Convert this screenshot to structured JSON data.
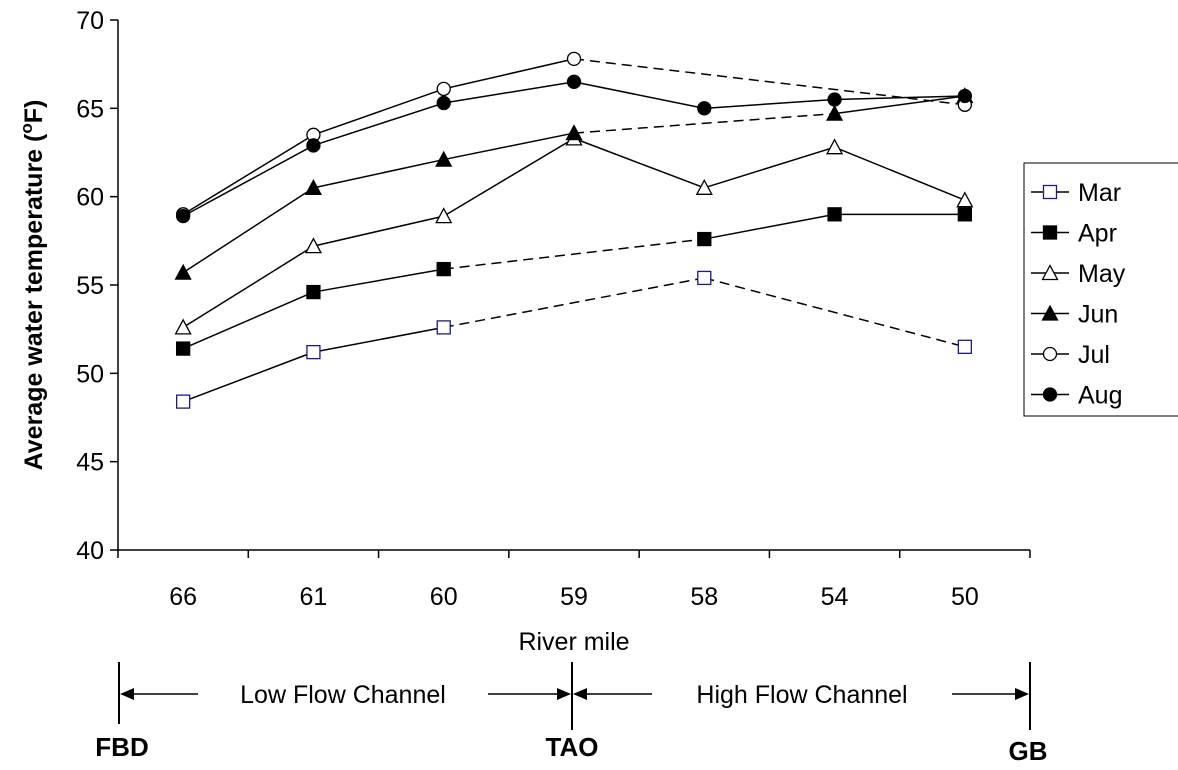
{
  "chart_data": {
    "type": "line",
    "title": "",
    "xlabel": "River mile",
    "ylabel": "Average water temperature (",
    "ylabel_sup": "o",
    "ylabel_end": "F)",
    "ylim": [
      40,
      70
    ],
    "yticks": [
      40,
      45,
      50,
      55,
      60,
      65,
      70
    ],
    "categories": [
      "66",
      "61",
      "60",
      "59",
      "58",
      "54",
      "50"
    ],
    "grid": false,
    "legend_position": "right",
    "series": [
      {
        "name": "Mar",
        "marker": "square-open",
        "color": "#1a1a8c",
        "values": [
          48.4,
          51.2,
          52.6,
          null,
          55.4,
          null,
          51.5
        ],
        "dashed_bridges": [
          [
            2,
            4
          ],
          [
            4,
            6
          ]
        ]
      },
      {
        "name": "Apr",
        "marker": "square-filled",
        "color": "#000000",
        "values": [
          51.4,
          54.6,
          55.9,
          null,
          57.6,
          59.0,
          59.0
        ],
        "dashed_bridges": [
          [
            2,
            4
          ]
        ]
      },
      {
        "name": "May",
        "marker": "triangle-open",
        "color": "#000000",
        "values": [
          52.6,
          57.2,
          58.9,
          63.3,
          60.5,
          62.8,
          59.8
        ],
        "dashed_bridges": []
      },
      {
        "name": "Jun",
        "marker": "triangle-filled",
        "color": "#000000",
        "values": [
          55.7,
          60.5,
          62.1,
          63.6,
          null,
          64.7,
          65.7
        ],
        "dashed_bridges": [
          [
            3,
            5
          ]
        ]
      },
      {
        "name": "Jul",
        "marker": "circle-open",
        "color": "#000000",
        "values": [
          59.0,
          63.5,
          66.1,
          67.8,
          null,
          null,
          65.2
        ],
        "dashed_bridges": [
          [
            3,
            6
          ]
        ]
      },
      {
        "name": "Aug",
        "marker": "circle-filled",
        "color": "#000000",
        "values": [
          58.9,
          62.9,
          65.3,
          66.5,
          65.0,
          65.5,
          65.7
        ],
        "dashed_bridges": []
      }
    ]
  },
  "annotations": {
    "low_flow_label": "Low Flow Channel",
    "high_flow_label": "High Flow Channel",
    "site_left": "FBD",
    "site_mid": "TAO",
    "site_right": "GB"
  }
}
